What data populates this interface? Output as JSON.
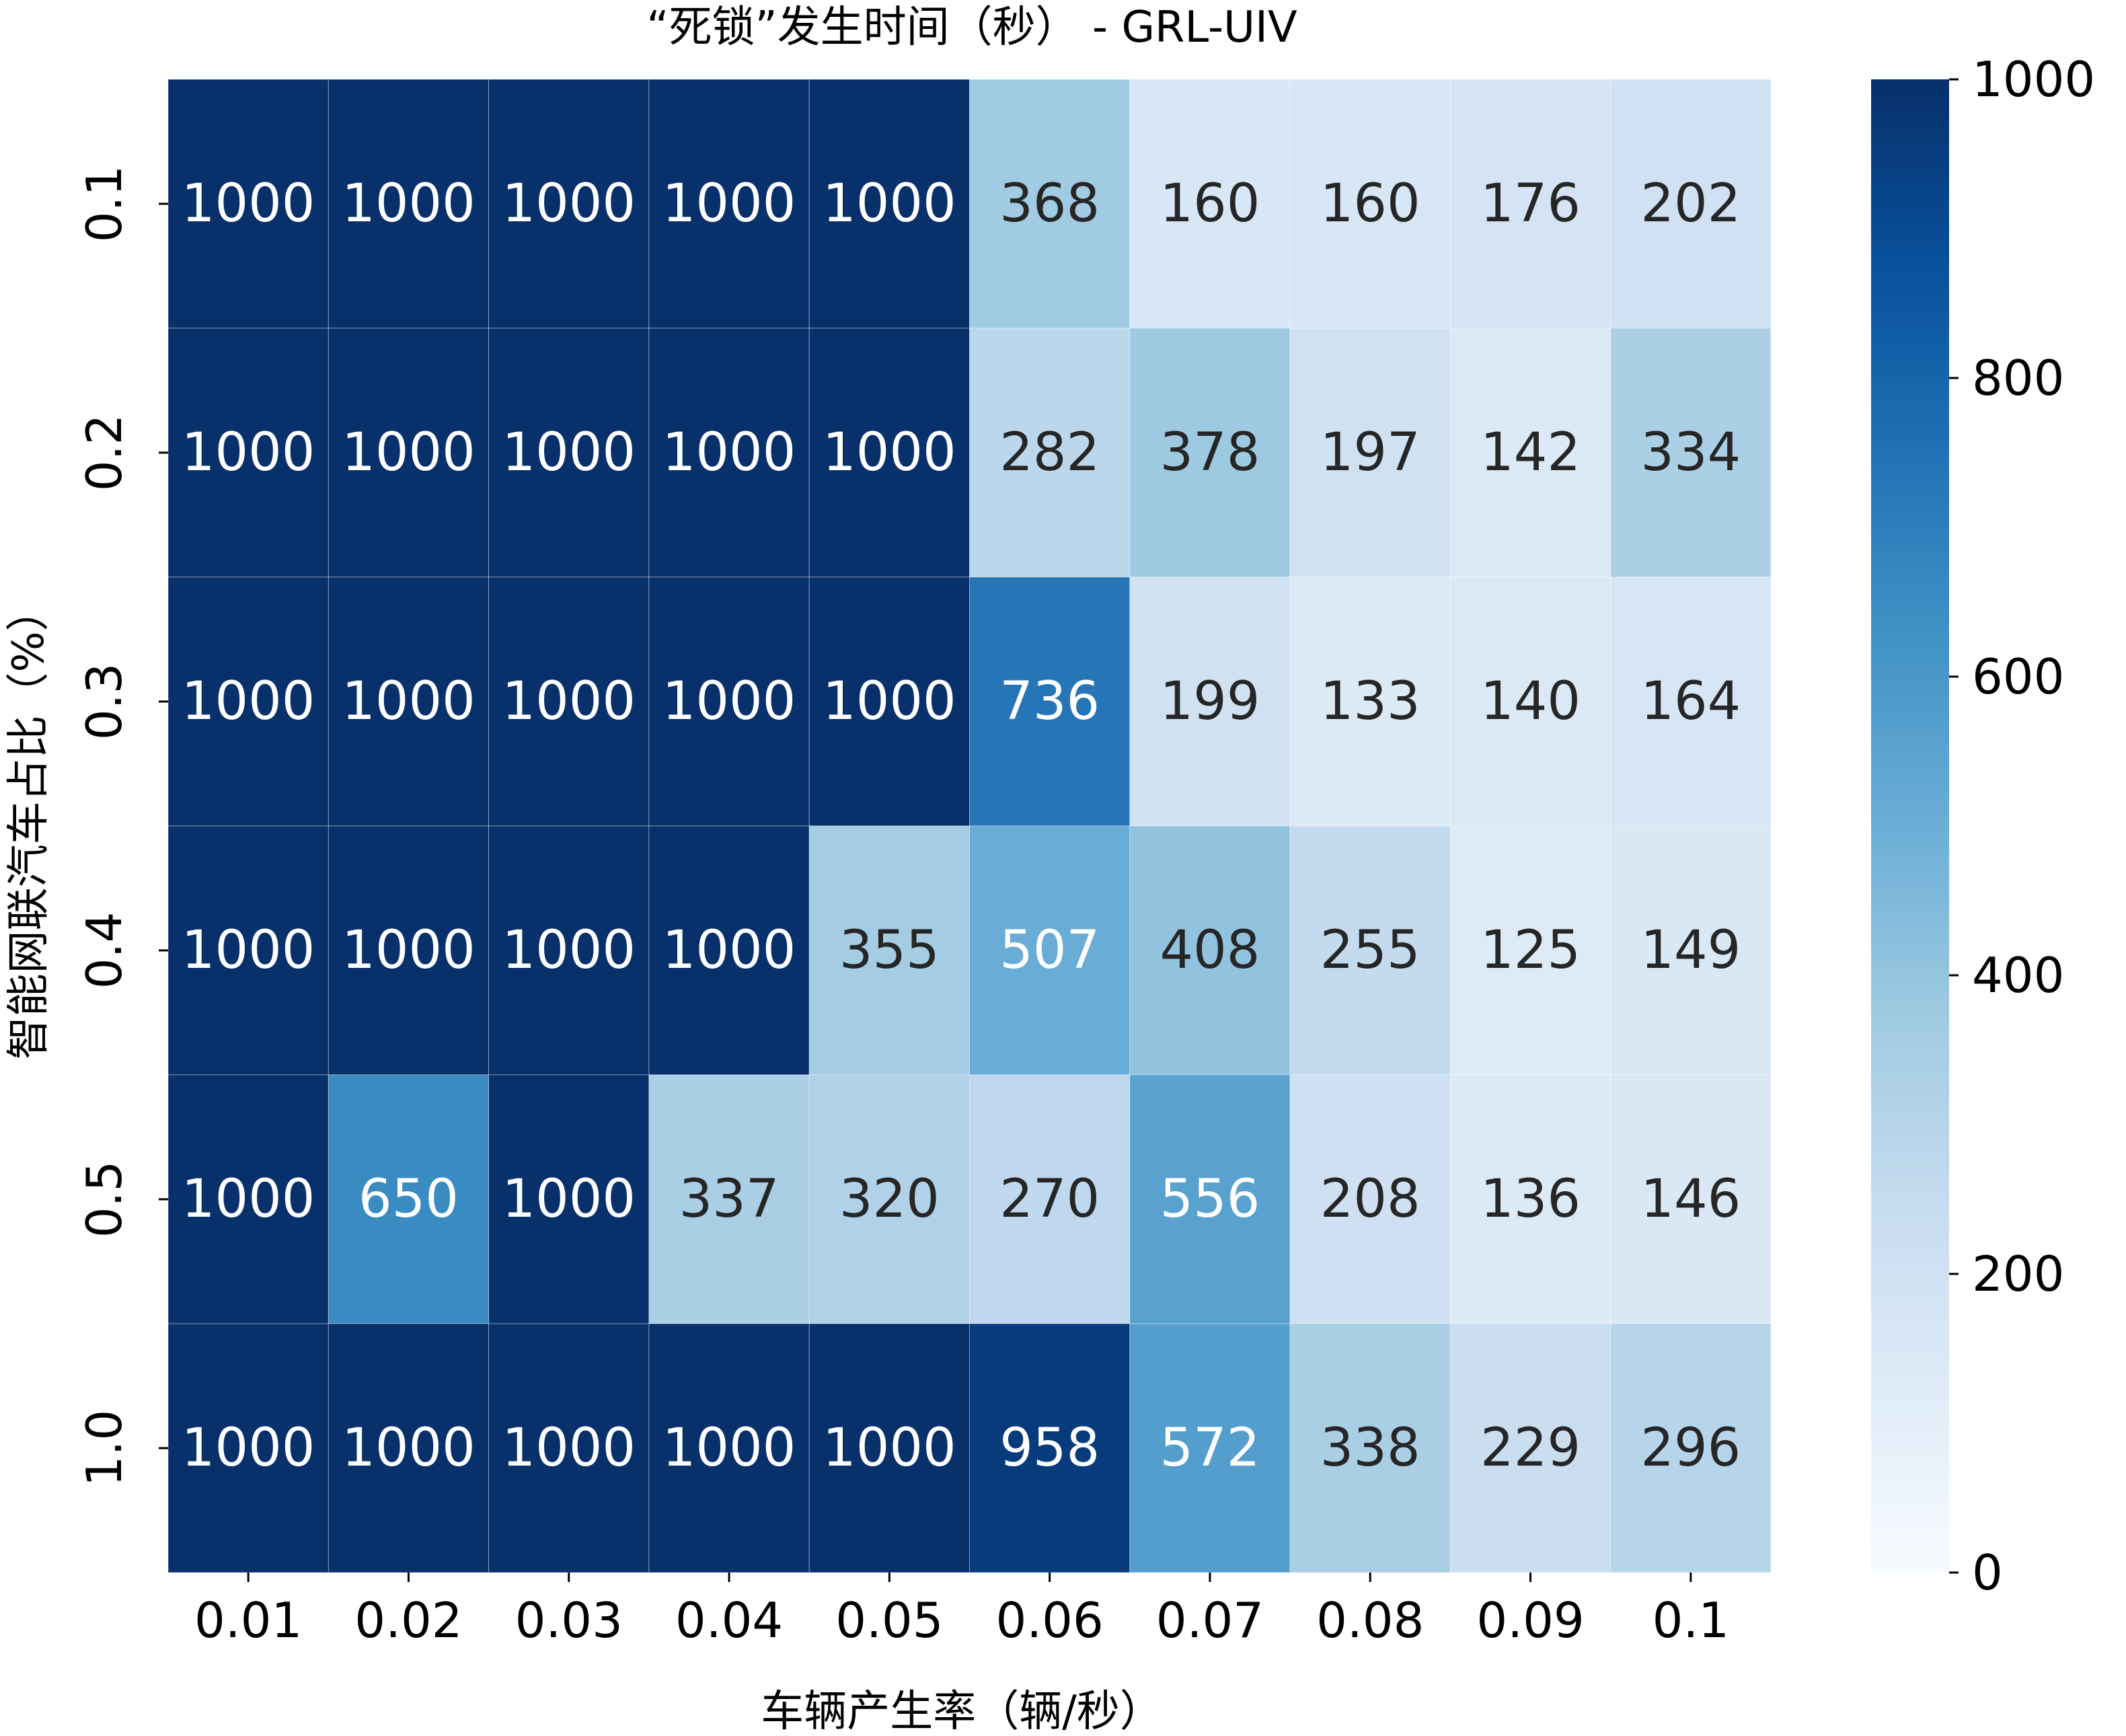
{
  "chart_data": {
    "type": "heatmap",
    "title": "“死锁”发生时间（秒） - GRL-UIV",
    "xlabel": "车辆产生率（辆/秒）",
    "ylabel": "智能网联汽车占比（%）",
    "x_categories": [
      "0.01",
      "0.02",
      "0.03",
      "0.04",
      "0.05",
      "0.06",
      "0.07",
      "0.08",
      "0.09",
      "0.1"
    ],
    "y_categories": [
      "0.1",
      "0.2",
      "0.3",
      "0.4",
      "0.5",
      "1.0"
    ],
    "values": [
      [
        1000,
        1000,
        1000,
        1000,
        1000,
        368,
        160,
        160,
        176,
        202
      ],
      [
        1000,
        1000,
        1000,
        1000,
        1000,
        282,
        378,
        197,
        142,
        334
      ],
      [
        1000,
        1000,
        1000,
        1000,
        1000,
        736,
        199,
        133,
        140,
        164
      ],
      [
        1000,
        1000,
        1000,
        1000,
        355,
        507,
        408,
        255,
        125,
        149
      ],
      [
        1000,
        650,
        1000,
        337,
        320,
        270,
        556,
        208,
        136,
        146
      ],
      [
        1000,
        1000,
        1000,
        1000,
        1000,
        958,
        572,
        338,
        229,
        296
      ]
    ],
    "colormap": "Blues",
    "colorbar": {
      "vmin": 0,
      "vmax": 1000,
      "ticks": [
        "0",
        "200",
        "400",
        "600",
        "800",
        "1000"
      ]
    },
    "annotations": true,
    "colors": {
      "text_dark": "#262626",
      "text_light": "#ffffff",
      "cell_border": "#ffffff"
    }
  }
}
